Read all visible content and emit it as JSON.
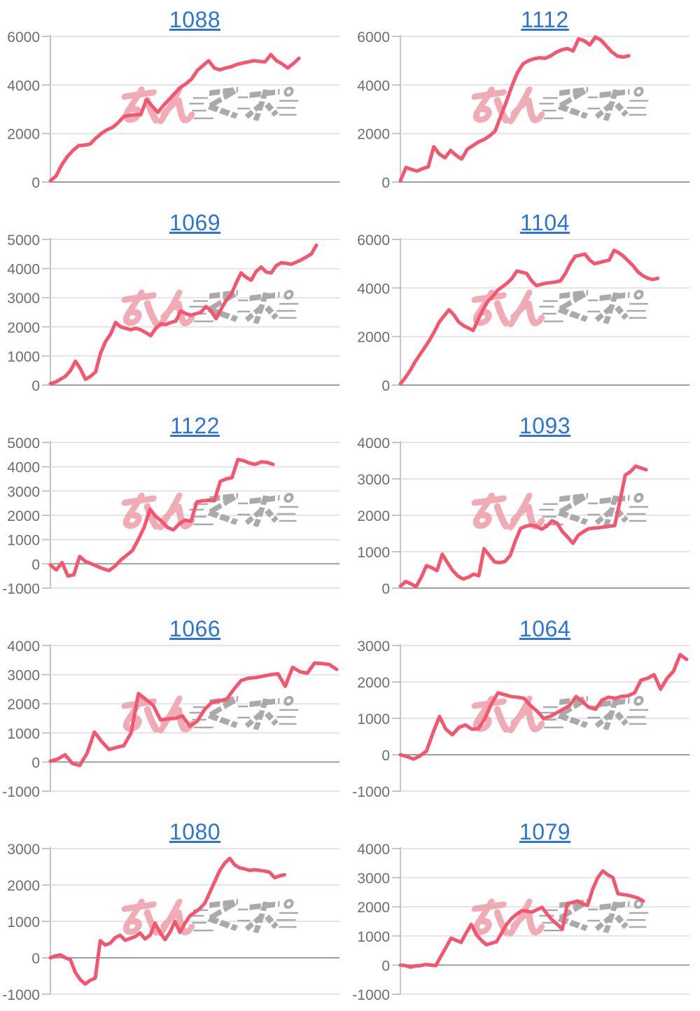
{
  "page": {
    "background": "#ffffff",
    "layout": "2-column by 5-row grid of line charts"
  },
  "watermark": {
    "text": "みんレポ",
    "pink_text": "みん",
    "gray_text": "レポ",
    "pink_color": "#efa3ac",
    "gray_color": "#a3a3a3"
  },
  "style": {
    "line_color": "#f4566f",
    "title_color": "#2e73d6",
    "tick_label_color": "#6e6e6e",
    "grid_color": "#e4e4e4",
    "zero_line_color": "#9e9e9e",
    "axis_color": "#c6c6c6"
  },
  "chart_data": [
    {
      "type": "line",
      "title": "1088",
      "ylim": [
        0,
        6000
      ],
      "yticks": [
        0,
        2000,
        4000,
        6000
      ],
      "grid": true,
      "legend": false,
      "x_extent": 0.86,
      "values": [
        50,
        250,
        700,
        1050,
        1300,
        1500,
        1520,
        1560,
        1800,
        2000,
        2150,
        2250,
        2450,
        2700,
        2750,
        2770,
        2780,
        3400,
        3130,
        2870,
        3150,
        3400,
        3650,
        3900,
        4050,
        4250,
        4600,
        4800,
        5000,
        4700,
        4620,
        4700,
        4750,
        4850,
        4900,
        4950,
        5000,
        4970,
        4950,
        5250,
        5000,
        4870,
        4700,
        4880,
        5100
      ]
    },
    {
      "type": "line",
      "title": "1112",
      "ylim": [
        0,
        6000
      ],
      "yticks": [
        0,
        2000,
        4000,
        6000
      ],
      "grid": true,
      "legend": false,
      "x_extent": 0.79,
      "values": [
        50,
        600,
        520,
        450,
        550,
        630,
        1450,
        1150,
        1000,
        1300,
        1100,
        950,
        1350,
        1500,
        1650,
        1750,
        1900,
        2100,
        2700,
        3300,
        3950,
        4500,
        4870,
        5000,
        5080,
        5120,
        5100,
        5200,
        5350,
        5450,
        5500,
        5400,
        5900,
        5820,
        5650,
        5970,
        5850,
        5600,
        5350,
        5180,
        5150,
        5200
      ]
    },
    {
      "type": "line",
      "title": "1069",
      "ylim": [
        0,
        5000
      ],
      "yticks": [
        0,
        1000,
        2000,
        3000,
        4000,
        5000
      ],
      "grid": true,
      "legend": false,
      "x_extent": 0.92,
      "values": [
        50,
        100,
        200,
        300,
        500,
        820,
        550,
        200,
        300,
        450,
        1100,
        1500,
        1750,
        2150,
        2000,
        1950,
        1900,
        1950,
        1900,
        1800,
        1700,
        1950,
        2100,
        2080,
        2150,
        2200,
        2550,
        2450,
        2400,
        2450,
        2500,
        2700,
        2550,
        2280,
        2600,
        2900,
        3100,
        3500,
        3850,
        3700,
        3600,
        3900,
        4050,
        3880,
        3850,
        4100,
        4200,
        4180,
        4150,
        4220,
        4300,
        4400,
        4500,
        4800
      ]
    },
    {
      "type": "line",
      "title": "1104",
      "ylim": [
        0,
        6000
      ],
      "yticks": [
        0,
        2000,
        4000,
        6000
      ],
      "grid": true,
      "legend": false,
      "x_extent": 0.89,
      "values": [
        50,
        300,
        600,
        950,
        1250,
        1550,
        1850,
        2200,
        2600,
        2850,
        3100,
        2900,
        2600,
        2450,
        2350,
        2250,
        2700,
        3100,
        3450,
        3650,
        3900,
        4050,
        4200,
        4400,
        4700,
        4650,
        4600,
        4300,
        4100,
        4150,
        4200,
        4220,
        4250,
        4300,
        4600,
        5000,
        5300,
        5350,
        5400,
        5150,
        5000,
        5050,
        5100,
        5150,
        5550,
        5450,
        5300,
        5100,
        4900,
        4650,
        4500,
        4400,
        4350,
        4400
      ]
    },
    {
      "type": "line",
      "title": "1122",
      "ylim": [
        -1000,
        5000
      ],
      "yticks": [
        -1000,
        0,
        1000,
        2000,
        3000,
        4000,
        5000
      ],
      "grid": true,
      "legend": false,
      "x_extent": 0.77,
      "values": [
        -50,
        -250,
        50,
        -500,
        -450,
        300,
        100,
        0,
        -100,
        -200,
        -280,
        -100,
        150,
        350,
        550,
        1000,
        1500,
        2250,
        1950,
        1750,
        1500,
        1400,
        1650,
        1800,
        1750,
        2550,
        2600,
        2620,
        2600,
        3400,
        3500,
        3550,
        4300,
        4250,
        4150,
        4100,
        4200,
        4180,
        4100
      ]
    },
    {
      "type": "line",
      "title": "1093",
      "ylim": [
        0,
        4000
      ],
      "yticks": [
        0,
        1000,
        2000,
        3000,
        4000
      ],
      "grid": true,
      "legend": false,
      "x_extent": 0.85,
      "values": [
        50,
        180,
        120,
        40,
        300,
        620,
        560,
        480,
        930,
        700,
        480,
        330,
        250,
        300,
        380,
        340,
        1080,
        900,
        720,
        700,
        730,
        900,
        1300,
        1640,
        1700,
        1730,
        1700,
        1620,
        1700,
        1850,
        1780,
        1550,
        1400,
        1230,
        1450,
        1550,
        1630,
        1650,
        1660,
        1680,
        1700,
        1720,
        2400,
        3100,
        3200,
        3350,
        3300,
        3250
      ]
    },
    {
      "type": "line",
      "title": "1066",
      "ylim": [
        -1000,
        4000
      ],
      "yticks": [
        -1000,
        0,
        1000,
        2000,
        3000,
        4000
      ],
      "grid": true,
      "legend": false,
      "x_extent": 0.99,
      "values": [
        30,
        100,
        250,
        -50,
        -120,
        300,
        1030,
        700,
        430,
        500,
        560,
        1000,
        2350,
        2150,
        1950,
        1450,
        1480,
        1500,
        1580,
        1230,
        1400,
        1800,
        2050,
        2100,
        2150,
        2500,
        2800,
        2880,
        2900,
        2950,
        3000,
        3030,
        2600,
        3250,
        3100,
        3050,
        3400,
        3380,
        3350,
        3180
      ]
    },
    {
      "type": "line",
      "title": "1064",
      "ylim": [
        -1000,
        3000
      ],
      "yticks": [
        -1000,
        0,
        1000,
        2000,
        3000
      ],
      "grid": true,
      "legend": false,
      "x_extent": 0.99,
      "values": [
        0,
        -50,
        -120,
        -30,
        100,
        600,
        1050,
        700,
        550,
        750,
        820,
        700,
        720,
        1000,
        1400,
        1700,
        1650,
        1600,
        1580,
        1550,
        1350,
        1200,
        1000,
        1050,
        1150,
        1250,
        1350,
        1600,
        1450,
        1300,
        1250,
        1500,
        1580,
        1550,
        1600,
        1620,
        1700,
        2050,
        2100,
        2200,
        1800,
        2100,
        2300,
        2750,
        2620
      ]
    },
    {
      "type": "line",
      "title": "1080",
      "ylim": [
        -1000,
        3000
      ],
      "yticks": [
        -1000,
        0,
        1000,
        2000,
        3000
      ],
      "grid": true,
      "legend": false,
      "x_extent": 0.81,
      "values": [
        0,
        50,
        80,
        0,
        -50,
        -400,
        -600,
        -720,
        -620,
        -560,
        470,
        350,
        400,
        550,
        620,
        480,
        530,
        580,
        680,
        520,
        620,
        950,
        700,
        500,
        700,
        1000,
        700,
        950,
        1150,
        1250,
        1350,
        1500,
        1800,
        2100,
        2400,
        2600,
        2730,
        2550,
        2470,
        2440,
        2400,
        2420,
        2400,
        2380,
        2350,
        2200,
        2250,
        2280
      ]
    },
    {
      "type": "line",
      "title": "1079",
      "ylim": [
        -1000,
        4000
      ],
      "yticks": [
        -1000,
        0,
        1000,
        2000,
        3000,
        4000
      ],
      "grid": true,
      "legend": false,
      "x_extent": 0.84,
      "values": [
        0,
        -20,
        -70,
        -30,
        -20,
        20,
        0,
        -20,
        300,
        600,
        920,
        850,
        780,
        1100,
        1400,
        1050,
        850,
        700,
        750,
        800,
        1100,
        1400,
        1600,
        1750,
        1870,
        1850,
        1820,
        1900,
        1980,
        1750,
        1550,
        1400,
        1230,
        2100,
        2150,
        2200,
        2100,
        2050,
        2600,
        3000,
        3230,
        3100,
        3000,
        2450,
        2420,
        2400,
        2350,
        2300,
        2200
      ]
    }
  ]
}
